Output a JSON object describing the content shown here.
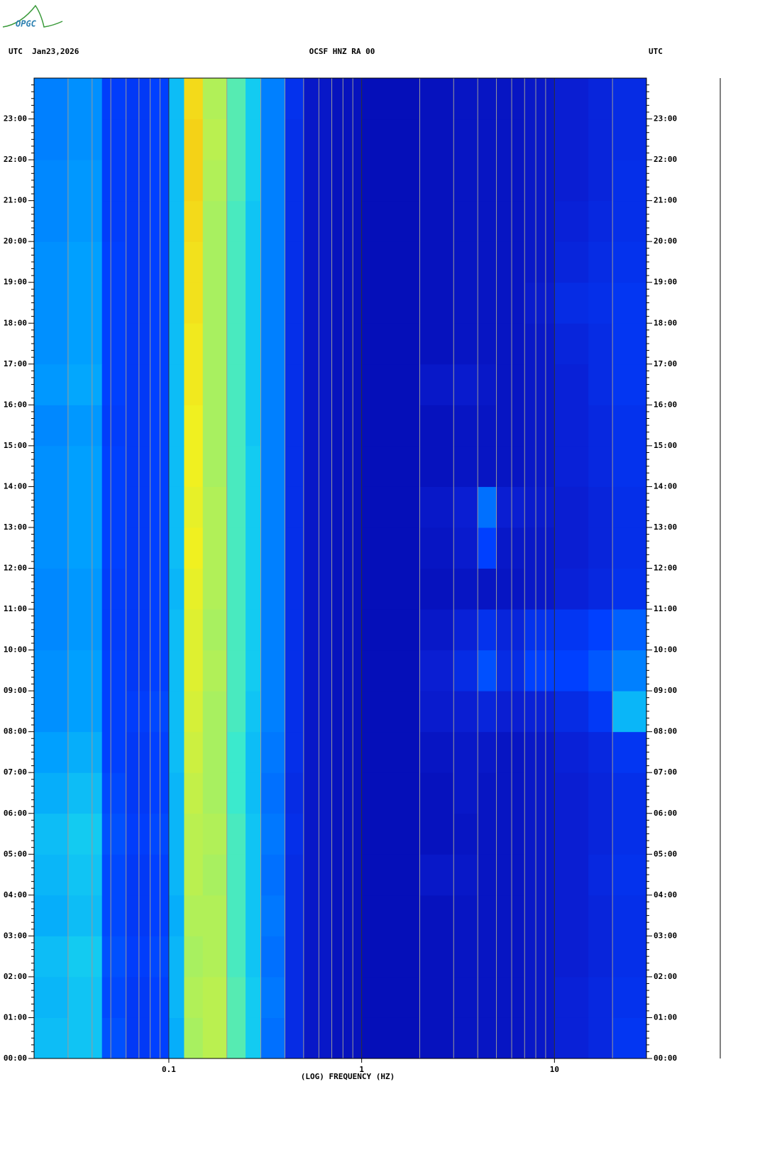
{
  "logo": "OPGC",
  "chart_data": {
    "type": "spectrogram",
    "title": "OCSF HNZ RA 00",
    "left_header": "UTC  Jan23,2026",
    "right_header": "UTC",
    "x_label": "(LOG) FREQUENCY (HZ)",
    "xscale": "log",
    "xlim": [
      0.02,
      30
    ],
    "xticks": [
      0.1,
      1,
      10
    ],
    "ylim": [
      0,
      24
    ],
    "yticks": [
      {
        "value": 0,
        "label": "00:00"
      },
      {
        "value": 1,
        "label": "01:00"
      },
      {
        "value": 2,
        "label": "02:00"
      },
      {
        "value": 3,
        "label": "03:00"
      },
      {
        "value": 4,
        "label": "04:00"
      },
      {
        "value": 5,
        "label": "05:00"
      },
      {
        "value": 6,
        "label": "06:00"
      },
      {
        "value": 7,
        "label": "07:00"
      },
      {
        "value": 8,
        "label": "08:00"
      },
      {
        "value": 9,
        "label": "09:00"
      },
      {
        "value": 10,
        "label": "10:00"
      },
      {
        "value": 11,
        "label": "11:00"
      },
      {
        "value": 12,
        "label": "12:00"
      },
      {
        "value": 13,
        "label": "13:00"
      },
      {
        "value": 14,
        "label": "14:00"
      },
      {
        "value": 15,
        "label": "15:00"
      },
      {
        "value": 16,
        "label": "16:00"
      },
      {
        "value": 17,
        "label": "17:00"
      },
      {
        "value": 18,
        "label": "18:00"
      },
      {
        "value": 19,
        "label": "19:00"
      },
      {
        "value": 20,
        "label": "20:00"
      },
      {
        "value": 21,
        "label": "21:00"
      },
      {
        "value": 22,
        "label": "22:00"
      },
      {
        "value": 23,
        "label": "23:00"
      }
    ],
    "grid": true,
    "xbins": [
      0.02,
      0.03,
      0.045,
      0.06,
      0.08,
      0.1,
      0.12,
      0.15,
      0.2,
      0.25,
      0.3,
      0.4,
      0.5,
      0.7,
      1,
      2,
      3,
      4,
      5,
      7,
      10,
      15,
      20,
      30
    ],
    "ybins": [
      0,
      1,
      2,
      3,
      4,
      5,
      6,
      7,
      8,
      9,
      10,
      11,
      12,
      13,
      14,
      15,
      16,
      17,
      18,
      19,
      20,
      21,
      22,
      23,
      24
    ],
    "zlim": [
      0,
      1
    ],
    "colorscale": [
      [
        0,
        "#000080"
      ],
      [
        0.1,
        "#0000a0"
      ],
      [
        0.2,
        "#0a1ed2"
      ],
      [
        0.3,
        "#0040ff"
      ],
      [
        0.42,
        "#00a0ff"
      ],
      [
        0.52,
        "#20e8e8"
      ],
      [
        0.62,
        "#a8f060"
      ],
      [
        0.7,
        "#f0f020"
      ],
      [
        0.85,
        "#ff8000"
      ],
      [
        1,
        "#ff0000"
      ]
    ],
    "values": [
      [
        0.46,
        0.47,
        0.32,
        0.28,
        0.3,
        0.44,
        0.62,
        0.64,
        0.56,
        0.48,
        0.36,
        0.24,
        0.18,
        0.16,
        0.15,
        0.16,
        0.17,
        0.17,
        0.17,
        0.18,
        0.21,
        0.23,
        0.27
      ],
      [
        0.45,
        0.47,
        0.31,
        0.28,
        0.3,
        0.45,
        0.63,
        0.64,
        0.56,
        0.48,
        0.37,
        0.24,
        0.18,
        0.16,
        0.15,
        0.16,
        0.17,
        0.17,
        0.17,
        0.18,
        0.21,
        0.23,
        0.26
      ],
      [
        0.46,
        0.48,
        0.32,
        0.29,
        0.31,
        0.45,
        0.62,
        0.63,
        0.55,
        0.47,
        0.36,
        0.24,
        0.18,
        0.16,
        0.15,
        0.16,
        0.17,
        0.17,
        0.17,
        0.18,
        0.2,
        0.22,
        0.25
      ],
      [
        0.44,
        0.46,
        0.31,
        0.28,
        0.3,
        0.44,
        0.63,
        0.63,
        0.55,
        0.47,
        0.37,
        0.24,
        0.18,
        0.16,
        0.15,
        0.16,
        0.17,
        0.17,
        0.17,
        0.18,
        0.2,
        0.22,
        0.25
      ],
      [
        0.45,
        0.47,
        0.31,
        0.28,
        0.3,
        0.45,
        0.64,
        0.62,
        0.55,
        0.47,
        0.36,
        0.24,
        0.18,
        0.16,
        0.15,
        0.18,
        0.18,
        0.17,
        0.17,
        0.18,
        0.2,
        0.23,
        0.26
      ],
      [
        0.46,
        0.48,
        0.32,
        0.29,
        0.31,
        0.45,
        0.64,
        0.63,
        0.55,
        0.47,
        0.37,
        0.25,
        0.18,
        0.16,
        0.15,
        0.16,
        0.17,
        0.17,
        0.17,
        0.18,
        0.2,
        0.22,
        0.25
      ],
      [
        0.44,
        0.46,
        0.31,
        0.28,
        0.3,
        0.45,
        0.65,
        0.62,
        0.54,
        0.46,
        0.36,
        0.24,
        0.18,
        0.16,
        0.15,
        0.16,
        0.18,
        0.17,
        0.17,
        0.18,
        0.2,
        0.22,
        0.25
      ],
      [
        0.42,
        0.44,
        0.3,
        0.28,
        0.3,
        0.46,
        0.66,
        0.62,
        0.54,
        0.46,
        0.37,
        0.25,
        0.18,
        0.16,
        0.15,
        0.17,
        0.18,
        0.18,
        0.17,
        0.18,
        0.21,
        0.23,
        0.27
      ],
      [
        0.4,
        0.42,
        0.3,
        0.29,
        0.31,
        0.46,
        0.67,
        0.62,
        0.55,
        0.47,
        0.38,
        0.25,
        0.18,
        0.16,
        0.15,
        0.19,
        0.2,
        0.22,
        0.2,
        0.21,
        0.24,
        0.28,
        0.45
      ],
      [
        0.4,
        0.42,
        0.3,
        0.28,
        0.3,
        0.46,
        0.68,
        0.63,
        0.55,
        0.48,
        0.38,
        0.25,
        0.18,
        0.16,
        0.15,
        0.2,
        0.24,
        0.32,
        0.24,
        0.3,
        0.3,
        0.33,
        0.38
      ],
      [
        0.39,
        0.41,
        0.29,
        0.28,
        0.3,
        0.46,
        0.68,
        0.62,
        0.55,
        0.48,
        0.38,
        0.25,
        0.18,
        0.16,
        0.15,
        0.18,
        0.21,
        0.26,
        0.22,
        0.26,
        0.27,
        0.3,
        0.34
      ],
      [
        0.39,
        0.41,
        0.29,
        0.28,
        0.3,
        0.45,
        0.69,
        0.63,
        0.55,
        0.48,
        0.38,
        0.25,
        0.18,
        0.16,
        0.15,
        0.16,
        0.17,
        0.17,
        0.17,
        0.18,
        0.21,
        0.23,
        0.26
      ],
      [
        0.4,
        0.42,
        0.3,
        0.28,
        0.3,
        0.46,
        0.7,
        0.63,
        0.55,
        0.48,
        0.38,
        0.25,
        0.18,
        0.16,
        0.15,
        0.17,
        0.19,
        0.3,
        0.18,
        0.18,
        0.2,
        0.22,
        0.25
      ],
      [
        0.4,
        0.42,
        0.3,
        0.28,
        0.3,
        0.46,
        0.69,
        0.63,
        0.55,
        0.48,
        0.38,
        0.25,
        0.18,
        0.16,
        0.15,
        0.18,
        0.2,
        0.36,
        0.2,
        0.19,
        0.2,
        0.22,
        0.25
      ],
      [
        0.4,
        0.42,
        0.3,
        0.28,
        0.3,
        0.46,
        0.7,
        0.62,
        0.55,
        0.48,
        0.38,
        0.25,
        0.18,
        0.16,
        0.15,
        0.16,
        0.17,
        0.17,
        0.17,
        0.18,
        0.21,
        0.23,
        0.26
      ],
      [
        0.39,
        0.41,
        0.29,
        0.28,
        0.3,
        0.46,
        0.7,
        0.62,
        0.55,
        0.47,
        0.38,
        0.25,
        0.18,
        0.16,
        0.15,
        0.16,
        0.17,
        0.17,
        0.17,
        0.18,
        0.21,
        0.23,
        0.26
      ],
      [
        0.41,
        0.43,
        0.3,
        0.28,
        0.3,
        0.46,
        0.71,
        0.62,
        0.55,
        0.47,
        0.38,
        0.25,
        0.18,
        0.16,
        0.15,
        0.18,
        0.19,
        0.18,
        0.17,
        0.18,
        0.21,
        0.24,
        0.27
      ],
      [
        0.4,
        0.42,
        0.3,
        0.28,
        0.3,
        0.46,
        0.71,
        0.62,
        0.55,
        0.47,
        0.38,
        0.25,
        0.18,
        0.16,
        0.15,
        0.16,
        0.17,
        0.17,
        0.17,
        0.18,
        0.22,
        0.24,
        0.27
      ],
      [
        0.4,
        0.42,
        0.3,
        0.28,
        0.3,
        0.46,
        0.72,
        0.62,
        0.55,
        0.47,
        0.38,
        0.25,
        0.18,
        0.16,
        0.15,
        0.16,
        0.17,
        0.17,
        0.17,
        0.19,
        0.24,
        0.25,
        0.27
      ],
      [
        0.4,
        0.42,
        0.3,
        0.28,
        0.3,
        0.46,
        0.72,
        0.62,
        0.55,
        0.47,
        0.38,
        0.25,
        0.18,
        0.16,
        0.15,
        0.16,
        0.17,
        0.17,
        0.17,
        0.18,
        0.22,
        0.24,
        0.26
      ],
      [
        0.39,
        0.41,
        0.29,
        0.28,
        0.3,
        0.46,
        0.73,
        0.62,
        0.55,
        0.47,
        0.38,
        0.25,
        0.18,
        0.16,
        0.15,
        0.16,
        0.17,
        0.17,
        0.17,
        0.18,
        0.21,
        0.23,
        0.25
      ],
      [
        0.39,
        0.41,
        0.29,
        0.28,
        0.3,
        0.46,
        0.74,
        0.63,
        0.56,
        0.48,
        0.38,
        0.25,
        0.18,
        0.16,
        0.15,
        0.16,
        0.17,
        0.17,
        0.17,
        0.18,
        0.2,
        0.22,
        0.25
      ],
      [
        0.38,
        0.4,
        0.29,
        0.28,
        0.3,
        0.46,
        0.74,
        0.64,
        0.56,
        0.48,
        0.38,
        0.25,
        0.18,
        0.16,
        0.15,
        0.16,
        0.17,
        0.17,
        0.17,
        0.18,
        0.2,
        0.22,
        0.24
      ],
      [
        0.38,
        0.4,
        0.29,
        0.28,
        0.3,
        0.46,
        0.73,
        0.63,
        0.56,
        0.48,
        0.38,
        0.26,
        0.18,
        0.16,
        0.15,
        0.16,
        0.17,
        0.17,
        0.17,
        0.18,
        0.2,
        0.22,
        0.24
      ]
    ]
  }
}
